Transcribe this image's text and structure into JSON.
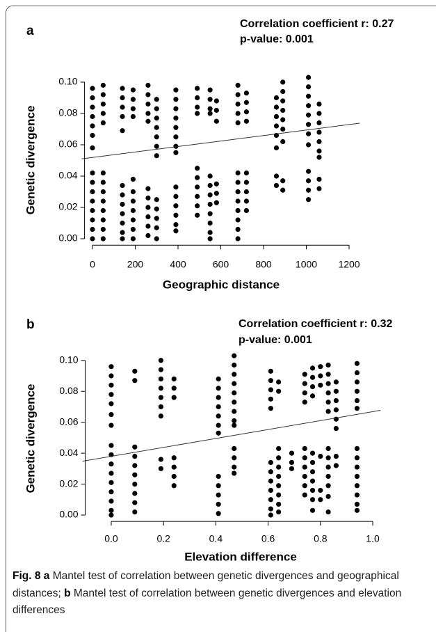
{
  "chart_data": [
    {
      "type": "scatter",
      "panel_label": "a",
      "annotations": [
        "Correlation coefficient r: 0.27",
        "p-value: 0.001"
      ],
      "x_label": "Geographic distance",
      "y_label": "Genetic divergence",
      "color": "#000000",
      "xlim": [
        -50,
        1250
      ],
      "ylim": [
        -0.005,
        0.108
      ],
      "xticks": [
        0,
        200,
        400,
        600,
        800,
        1000,
        1200
      ],
      "yticks": [
        {
          "value": 0,
          "label": "0.00"
        },
        {
          "value": 0.02,
          "label": "0.02"
        },
        {
          "value": 0.04,
          "label": "0.04"
        },
        {
          "value": 0.06,
          "label": "0.06"
        },
        {
          "value": 0.08,
          "label": "0.08"
        },
        {
          "value": 0.1,
          "label": "0.10"
        }
      ],
      "fit_line": {
        "x": [
          -50,
          1250
        ],
        "y": [
          0.051,
          0.0738
        ]
      },
      "x": [
        0,
        0,
        0,
        0,
        0,
        0,
        0,
        0,
        0,
        0,
        0,
        0,
        0,
        0,
        0,
        50,
        50,
        50,
        50,
        50,
        50,
        50,
        50,
        50,
        50,
        50,
        50,
        50,
        140,
        140,
        140,
        140,
        140,
        140,
        140,
        140,
        140,
        140,
        140,
        140,
        190,
        190,
        190,
        190,
        190,
        190,
        190,
        190,
        190,
        190,
        190,
        260,
        260,
        260,
        260,
        260,
        260,
        260,
        260,
        260,
        260,
        260,
        300,
        300,
        300,
        300,
        300,
        300,
        300,
        300,
        300,
        300,
        300,
        300,
        390,
        390,
        390,
        390,
        390,
        390,
        390,
        390,
        390,
        390,
        390,
        390,
        390,
        390,
        490,
        490,
        490,
        490,
        490,
        490,
        490,
        490,
        490,
        490,
        550,
        550,
        550,
        550,
        550,
        550,
        550,
        550,
        550,
        550,
        550,
        550,
        580,
        580,
        580,
        580,
        580,
        580,
        680,
        680,
        680,
        680,
        680,
        680,
        680,
        680,
        680,
        680,
        680,
        680,
        680,
        720,
        720,
        720,
        720,
        720,
        720,
        720,
        720,
        720,
        860,
        860,
        860,
        860,
        860,
        860,
        860,
        860,
        890,
        890,
        890,
        890,
        890,
        890,
        890,
        890,
        890,
        1010,
        1010,
        1010,
        1010,
        1010,
        1010,
        1010,
        1010,
        1010,
        1010,
        1010,
        1010,
        1060,
        1060,
        1060,
        1060,
        1060,
        1060,
        1060,
        1060,
        1060
      ],
      "y": [
        0.096,
        0.09,
        0.084,
        0.078,
        0.072,
        0.066,
        0.058,
        0.042,
        0.036,
        0.03,
        0.024,
        0.018,
        0.012,
        0.006,
        0.0,
        0.098,
        0.092,
        0.086,
        0.08,
        0.074,
        0.042,
        0.036,
        0.03,
        0.024,
        0.018,
        0.012,
        0.006,
        0.0,
        0.096,
        0.09,
        0.084,
        0.078,
        0.069,
        0.034,
        0.028,
        0.022,
        0.016,
        0.01,
        0.004,
        0.0,
        0.095,
        0.089,
        0.083,
        0.078,
        0.038,
        0.03,
        0.024,
        0.018,
        0.012,
        0.006,
        0.0,
        0.098,
        0.092,
        0.086,
        0.08,
        0.075,
        0.032,
        0.026,
        0.02,
        0.014,
        0.008,
        0.002,
        0.089,
        0.083,
        0.077,
        0.071,
        0.065,
        0.059,
        0.053,
        0.025,
        0.019,
        0.013,
        0.007,
        0.0,
        0.095,
        0.089,
        0.083,
        0.077,
        0.071,
        0.065,
        0.059,
        0.055,
        0.033,
        0.027,
        0.021,
        0.015,
        0.009,
        0.005,
        0.096,
        0.09,
        0.084,
        0.08,
        0.045,
        0.039,
        0.033,
        0.027,
        0.021,
        0.015,
        0.095,
        0.089,
        0.083,
        0.08,
        0.04,
        0.034,
        0.028,
        0.022,
        0.016,
        0.01,
        0.004,
        0.0,
        0.088,
        0.082,
        0.075,
        0.035,
        0.029,
        0.023,
        0.098,
        0.092,
        0.086,
        0.08,
        0.074,
        0.042,
        0.036,
        0.03,
        0.024,
        0.018,
        0.012,
        0.006,
        0.0,
        0.093,
        0.087,
        0.081,
        0.075,
        0.042,
        0.036,
        0.03,
        0.024,
        0.018,
        0.09,
        0.084,
        0.078,
        0.072,
        0.066,
        0.058,
        0.04,
        0.034,
        0.1,
        0.094,
        0.088,
        0.082,
        0.076,
        0.07,
        0.062,
        0.037,
        0.031,
        0.103,
        0.097,
        0.091,
        0.085,
        0.079,
        0.073,
        0.067,
        0.06,
        0.043,
        0.037,
        0.031,
        0.025,
        0.086,
        0.08,
        0.074,
        0.068,
        0.062,
        0.056,
        0.052,
        0.038,
        0.032
      ]
    },
    {
      "type": "scatter",
      "panel_label": "b",
      "annotations": [
        "Correlation coefficient r: 0.32",
        "p-value: 0.001"
      ],
      "x_label": "Elevation difference",
      "y_label": "Genetic divergence",
      "color": "#000000",
      "xlim": [
        -0.11,
        1.03
      ],
      "ylim": [
        -0.005,
        0.108
      ],
      "xticks": [
        {
          "value": 0,
          "label": "0.0"
        },
        0.2,
        0.4,
        0.6,
        0.8,
        {
          "value": 1,
          "label": "1.0"
        }
      ],
      "yticks": [
        {
          "value": 0,
          "label": "0.00"
        },
        {
          "value": 0.02,
          "label": "0.02"
        },
        {
          "value": 0.04,
          "label": "0.04"
        },
        {
          "value": 0.06,
          "label": "0.06"
        },
        {
          "value": 0.08,
          "label": "0.08"
        },
        {
          "value": 0.1,
          "label": "0.10"
        }
      ],
      "fit_line": {
        "x": [
          -0.11,
          1.03
        ],
        "y": [
          0.0348,
          0.0677
        ]
      },
      "x": [
        0,
        0,
        0,
        0,
        0,
        0,
        0,
        0,
        0,
        0,
        0,
        0,
        0,
        0,
        0,
        0,
        0.09,
        0.09,
        0.09,
        0.09,
        0.09,
        0.09,
        0.09,
        0.09,
        0.09,
        0.09,
        0.19,
        0.19,
        0.19,
        0.19,
        0.19,
        0.19,
        0.19,
        0.19,
        0.19,
        0.24,
        0.24,
        0.24,
        0.24,
        0.24,
        0.24,
        0.24,
        0.41,
        0.41,
        0.41,
        0.41,
        0.41,
        0.41,
        0.41,
        0.41,
        0.41,
        0.41,
        0.41,
        0.41,
        0.47,
        0.47,
        0.47,
        0.47,
        0.47,
        0.47,
        0.47,
        0.47,
        0.47,
        0.47,
        0.47,
        0.47,
        0.47,
        0.61,
        0.61,
        0.61,
        0.61,
        0.61,
        0.61,
        0.61,
        0.61,
        0.61,
        0.61,
        0.61,
        0.61,
        0.64,
        0.64,
        0.64,
        0.64,
        0.64,
        0.64,
        0.64,
        0.64,
        0.64,
        0.64,
        0.69,
        0.69,
        0.69,
        0.74,
        0.74,
        0.74,
        0.74,
        0.74,
        0.74,
        0.74,
        0.74,
        0.74,
        0.74,
        0.77,
        0.77,
        0.77,
        0.77,
        0.77,
        0.77,
        0.77,
        0.77,
        0.77,
        0.77,
        0.77,
        0.8,
        0.8,
        0.8,
        0.8,
        0.8,
        0.8,
        0.83,
        0.83,
        0.83,
        0.83,
        0.83,
        0.83,
        0.83,
        0.83,
        0.83,
        0.83,
        0.83,
        0.83,
        0.83,
        0.86,
        0.86,
        0.86,
        0.86,
        0.86,
        0.86,
        0.86,
        0.86,
        0.94,
        0.94,
        0.94,
        0.94,
        0.94,
        0.94,
        0.94,
        0.94,
        0.94,
        0.94,
        0.94,
        0.94,
        0.94,
        0.94
      ],
      "y": [
        0.096,
        0.09,
        0.084,
        0.078,
        0.072,
        0.065,
        0.058,
        0.045,
        0.039,
        0.033,
        0.027,
        0.021,
        0.015,
        0.009,
        0.003,
        0.0,
        0.093,
        0.087,
        0.044,
        0.038,
        0.032,
        0.026,
        0.02,
        0.014,
        0.008,
        0.002,
        0.1,
        0.094,
        0.088,
        0.082,
        0.076,
        0.07,
        0.064,
        0.036,
        0.03,
        0.088,
        0.082,
        0.076,
        0.037,
        0.031,
        0.025,
        0.019,
        0.088,
        0.082,
        0.076,
        0.07,
        0.064,
        0.058,
        0.053,
        0.025,
        0.019,
        0.013,
        0.007,
        0.001,
        0.103,
        0.097,
        0.091,
        0.085,
        0.079,
        0.073,
        0.067,
        0.061,
        0.058,
        0.043,
        0.037,
        0.031,
        0.027,
        0.093,
        0.087,
        0.081,
        0.075,
        0.069,
        0.034,
        0.028,
        0.022,
        0.016,
        0.01,
        0.004,
        0.0,
        0.086,
        0.08,
        0.043,
        0.037,
        0.031,
        0.025,
        0.019,
        0.013,
        0.007,
        0.002,
        0.04,
        0.034,
        0.03,
        0.091,
        0.085,
        0.079,
        0.073,
        0.043,
        0.037,
        0.031,
        0.025,
        0.019,
        0.013,
        0.095,
        0.089,
        0.083,
        0.077,
        0.04,
        0.034,
        0.028,
        0.022,
        0.016,
        0.01,
        0.003,
        0.096,
        0.09,
        0.084,
        0.038,
        0.016,
        0.01,
        0.097,
        0.091,
        0.085,
        0.079,
        0.073,
        0.067,
        0.043,
        0.037,
        0.031,
        0.025,
        0.019,
        0.012,
        0.002,
        0.086,
        0.08,
        0.074,
        0.068,
        0.062,
        0.056,
        0.038,
        0.032,
        0.098,
        0.092,
        0.086,
        0.08,
        0.074,
        0.069,
        0.043,
        0.037,
        0.031,
        0.025,
        0.019,
        0.013,
        0.007,
        0.003
      ]
    }
  ],
  "caption": {
    "label": "Fig. 8",
    "a_marker": "a",
    "a_text": "Mantel test of correlation between genetic divergences and geographical distances;",
    "b_marker": "b",
    "b_text": "Mantel test of correlation between genetic divergences and elevation differences"
  }
}
